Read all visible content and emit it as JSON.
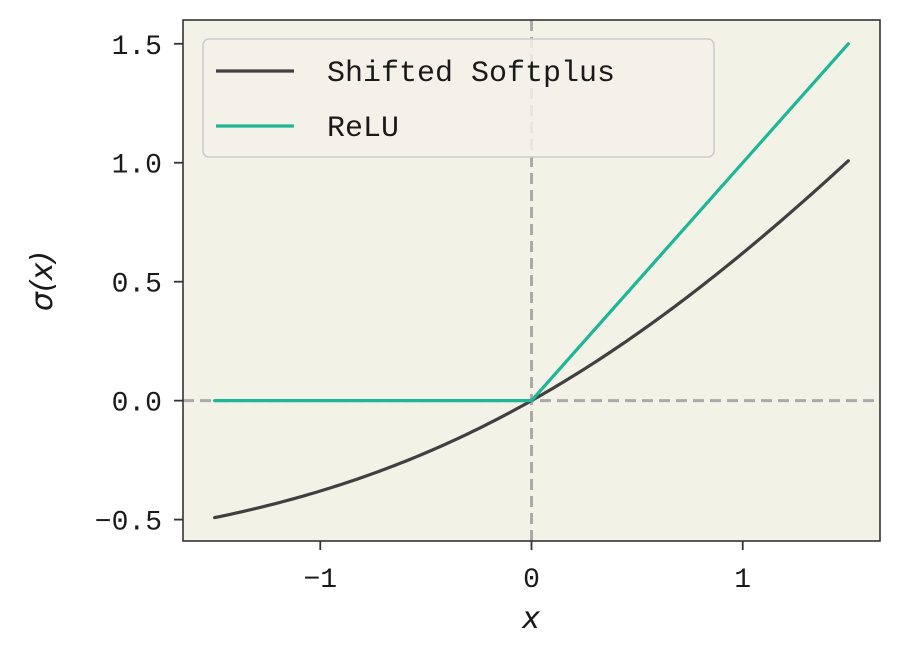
{
  "chart_data": {
    "type": "line",
    "xlabel": "x",
    "ylabel": "σ(x)",
    "xlim": [
      -1.65,
      1.65
    ],
    "ylim": [
      -0.59,
      1.6
    ],
    "xticks": [
      {
        "value": -1,
        "label": "−1"
      },
      {
        "value": 0,
        "label": "0"
      },
      {
        "value": 1,
        "label": "1"
      }
    ],
    "yticks": [
      {
        "value": -0.5,
        "label": "−0.5"
      },
      {
        "value": 0.0,
        "label": "0.0"
      },
      {
        "value": 0.5,
        "label": "0.5"
      },
      {
        "value": 1.0,
        "label": "1.0"
      },
      {
        "value": 1.5,
        "label": "1.5"
      }
    ],
    "reference_lines": {
      "x": 0,
      "y": 0,
      "style": "dashed",
      "color": "#aaaaaa"
    },
    "grid": false,
    "legend_position": "top-left",
    "background_color": "#f3f2e7",
    "series": [
      {
        "name": "Shifted Softplus",
        "color": "#404040",
        "x": [
          -1.5,
          -1.25,
          -1.0,
          -0.75,
          -0.5,
          -0.25,
          0.0,
          0.25,
          0.5,
          0.75,
          1.0,
          1.25,
          1.5
        ],
        "y": [
          -0.492,
          -0.44,
          -0.38,
          -0.312,
          -0.219,
          -0.117,
          0.0,
          0.133,
          0.281,
          0.444,
          0.62,
          0.808,
          1.008
        ]
      },
      {
        "name": "ReLU",
        "color": "#1fb597",
        "x": [
          -1.5,
          0.0,
          1.5
        ],
        "y": [
          0.0,
          0.0,
          1.5
        ]
      }
    ]
  }
}
